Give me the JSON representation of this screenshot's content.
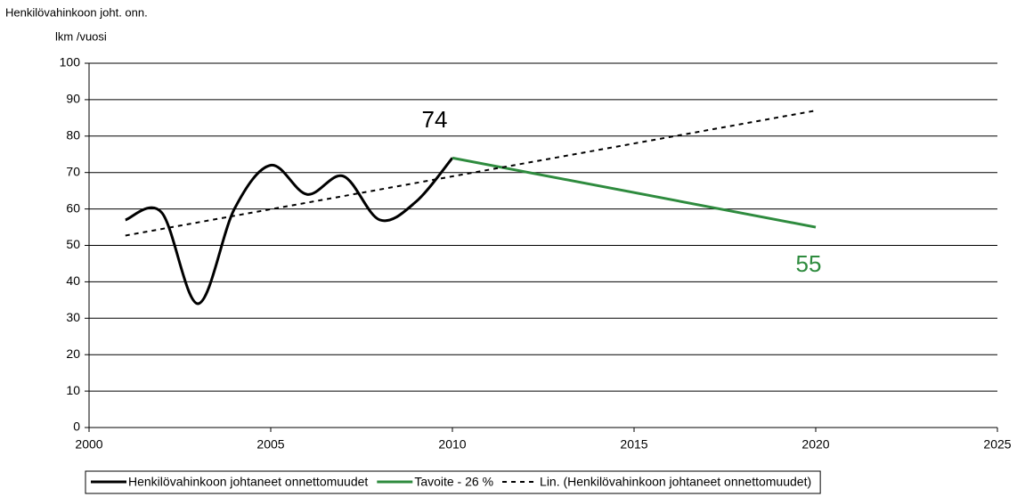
{
  "chart_data": {
    "type": "line",
    "y_label": [
      "Henkilövahinkoon joht. onn.",
      "lkm /vuosi"
    ],
    "xlim": [
      2000,
      2025
    ],
    "xticks": [
      2000,
      2005,
      2010,
      2015,
      2020,
      2025
    ],
    "ylim": [
      0,
      100
    ],
    "yticks": [
      0,
      10,
      20,
      30,
      40,
      50,
      60,
      70,
      80,
      90,
      100
    ],
    "grid": true,
    "legend": "bottom",
    "series": [
      {
        "name": "Henkilövahinkoon johtaneet onnettomuudet",
        "color": "#000000",
        "line_style": "solid",
        "smooth": true,
        "x": [
          2001,
          2002,
          2003,
          2004,
          2005,
          2006,
          2007,
          2008,
          2009,
          2010
        ],
        "values": [
          57,
          59,
          34,
          60,
          72,
          64,
          69,
          57,
          62,
          74
        ]
      },
      {
        "name": "Tavoite - 26 %",
        "color": "#2e8b3e",
        "line_style": "solid",
        "smooth": false,
        "x": [
          2010,
          2020
        ],
        "values": [
          74,
          55
        ]
      },
      {
        "name": "Lin. (Henkilövahinkoon johtaneet onnettomuudet)",
        "color": "#000000",
        "line_style": "dotted",
        "smooth": false,
        "x": [
          2001,
          2020
        ],
        "values": [
          52.7,
          87
        ]
      }
    ],
    "annotations": [
      {
        "text": "74",
        "color": "#000000"
      },
      {
        "text": "55",
        "color": "#2e8b3e"
      }
    ]
  }
}
